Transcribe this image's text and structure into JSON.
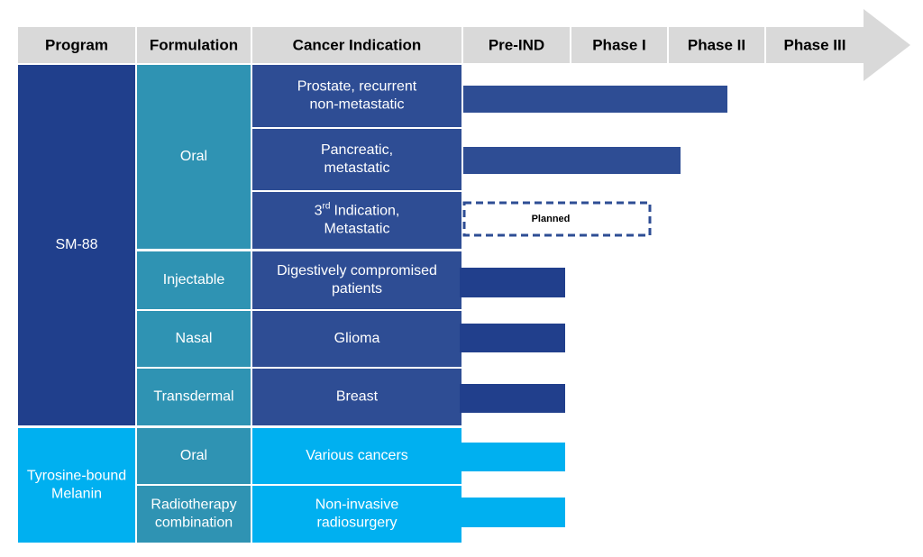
{
  "header": [
    "Program",
    "Formulation",
    "Cancer Indication",
    "Pre-IND",
    "Phase I",
    "Phase II",
    "Phase III"
  ],
  "programs": [
    [
      "SM-88"
    ],
    [
      "Tyrosine-bound",
      "Melanin"
    ]
  ],
  "formulations": [
    [
      "Oral"
    ],
    [
      "Injectable"
    ],
    [
      "Nasal"
    ],
    [
      "Transdermal"
    ],
    [
      "Oral"
    ],
    [
      "Radiotherapy",
      "combination"
    ]
  ],
  "indications": [
    {
      "lines": [
        "Prostate, recurrent",
        "non-metastatic"
      ]
    },
    {
      "lines": [
        "Pancreatic,",
        "metastatic"
      ]
    },
    {
      "ordinal": "3",
      "ordinal_suffix": "rd",
      "lines": [
        "Indication,",
        "Metastatic"
      ]
    },
    {
      "lines": [
        "Digestively compromised",
        "patients"
      ]
    },
    {
      "lines": [
        "Glioma"
      ]
    },
    {
      "lines": [
        "Breast"
      ]
    },
    {
      "lines": [
        "Various cancers"
      ]
    },
    {
      "lines": [
        "Non-invasive",
        "radiosurgery"
      ]
    }
  ],
  "status_label": "Planned"
}
